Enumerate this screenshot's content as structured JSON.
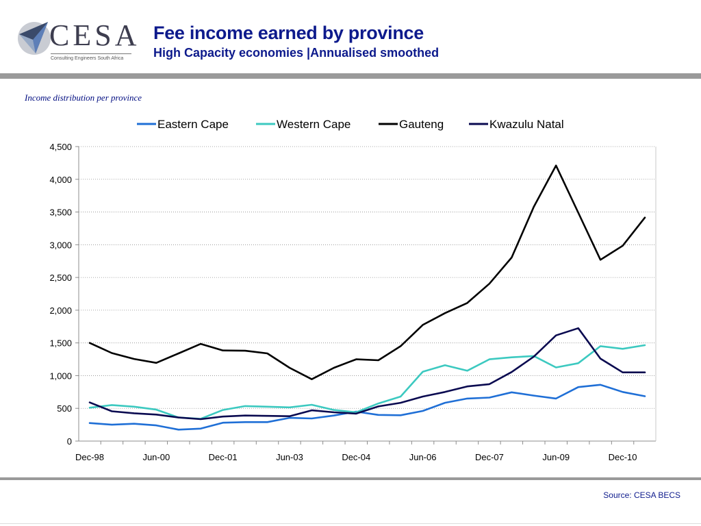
{
  "header": {
    "logo_text": "CESA",
    "logo_subtitle": "Consulting Engineers South Africa",
    "title": "Fee income earned by province",
    "subtitle": "High Capacity economies |Annualised smoothed"
  },
  "caption": "Income distribution per province",
  "footer": {
    "source": "Source: CESA BECS"
  },
  "colors": {
    "title": "#0d1a8c",
    "eastern_cape": "#1f6fd6",
    "western_cape": "#3cc9c0",
    "gauteng": "#000000",
    "kwazulu_natal": "#0a0a50"
  },
  "chart_data": {
    "type": "line",
    "title": "",
    "xlabel": "",
    "ylabel": "",
    "ylim": [
      0,
      4500
    ],
    "yticks": [
      0,
      500,
      1000,
      1500,
      2000,
      2500,
      3000,
      3500,
      4000,
      4500
    ],
    "ytick_labels": [
      "0",
      "500",
      "1,000",
      "1,500",
      "2,000",
      "2,500",
      "3,000",
      "3,500",
      "4,000",
      "4,500"
    ],
    "x": [
      "Dec-98",
      "Jun-99",
      "Dec-99",
      "Jun-00",
      "Dec-00",
      "Jun-01",
      "Dec-01",
      "Jun-02",
      "Dec-02",
      "Jun-03",
      "Dec-03",
      "Jun-04",
      "Dec-04",
      "Jun-05",
      "Dec-05",
      "Jun-06",
      "Dec-06",
      "Jun-07",
      "Dec-07",
      "Jun-08",
      "Dec-08",
      "Jun-09",
      "Dec-09",
      "Jun-10",
      "Dec-10",
      "Jun-11"
    ],
    "xtick_labels": [
      "Dec-98",
      "Jun-00",
      "Dec-01",
      "Jun-03",
      "Dec-04",
      "Jun-06",
      "Dec-07",
      "Jun-09",
      "Dec-10"
    ],
    "grid": "horizontal dotted",
    "legend": "top",
    "series": [
      {
        "name": "Eastern Cape",
        "color": "#1f6fd6",
        "values": [
          275,
          250,
          265,
          240,
          175,
          190,
          280,
          290,
          290,
          355,
          345,
          390,
          450,
          400,
          395,
          460,
          585,
          650,
          665,
          745,
          695,
          650,
          825,
          860,
          750,
          685
        ]
      },
      {
        "name": "Western Cape",
        "color": "#3cc9c0",
        "values": [
          510,
          550,
          525,
          480,
          360,
          340,
          475,
          535,
          525,
          515,
          555,
          475,
          440,
          575,
          680,
          1060,
          1160,
          1075,
          1250,
          1280,
          1300,
          1125,
          1190,
          1450,
          1410,
          1465
        ]
      },
      {
        "name": "Gauteng",
        "color": "#000000",
        "values": [
          1500,
          1345,
          1255,
          1195,
          1340,
          1485,
          1385,
          1380,
          1340,
          1120,
          945,
          1120,
          1250,
          1235,
          1450,
          1775,
          1955,
          2110,
          2405,
          2805,
          3580,
          4210,
          3490,
          2770,
          2985,
          3415
        ]
      },
      {
        "name": "Kwazulu Natal",
        "color": "#0a0a50",
        "values": [
          590,
          455,
          425,
          405,
          360,
          335,
          375,
          390,
          385,
          380,
          470,
          440,
          420,
          530,
          585,
          680,
          750,
          835,
          870,
          1055,
          1290,
          1615,
          1725,
          1260,
          1050,
          1050
        ]
      }
    ]
  }
}
